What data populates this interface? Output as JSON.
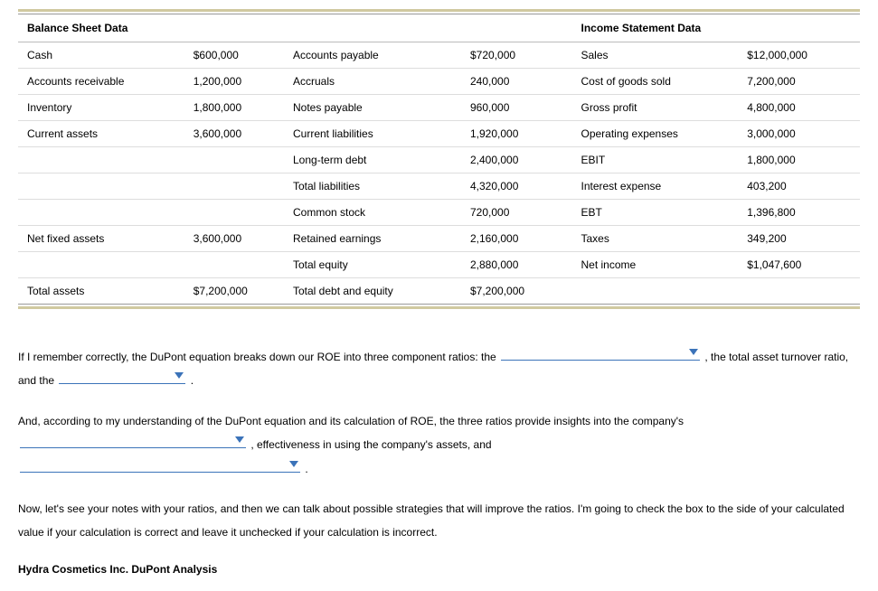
{
  "table": {
    "header_left": "Balance Sheet Data",
    "header_right": "Income Statement Data",
    "rows": [
      {
        "c1": "Cash",
        "c2": "$600,000",
        "c3": "Accounts payable",
        "c4": "$720,000",
        "c5": "Sales",
        "c6": "$12,000,000",
        "indent1": false,
        "indent3": false,
        "indent5": false
      },
      {
        "c1": "Accounts receivable",
        "c2": "1,200,000",
        "c3": "Accruals",
        "c4": "240,000",
        "c5": "Cost of goods sold",
        "c6": "7,200,000",
        "indent1": false,
        "indent3": false,
        "indent5": false
      },
      {
        "c1": "Inventory",
        "c2": "1,800,000",
        "c3": "Notes payable",
        "c4": "960,000",
        "c5": "Gross profit",
        "c6": "4,800,000",
        "indent1": false,
        "indent3": false,
        "indent5": false
      },
      {
        "c1": "Current assets",
        "c2": "3,600,000",
        "c3": "Current liabilities",
        "c4": "1,920,000",
        "c5": "Operating expenses",
        "c6": "3,000,000",
        "indent1": true,
        "indent3": true,
        "indent5": false
      },
      {
        "c1": "",
        "c2": "",
        "c3": "Long-term debt",
        "c4": "2,400,000",
        "c5": "EBIT",
        "c6": "1,800,000",
        "indent1": false,
        "indent3": false,
        "indent5": false
      },
      {
        "c1": "",
        "c2": "",
        "c3": "Total liabilities",
        "c4": "4,320,000",
        "c5": "Interest expense",
        "c6": "403,200",
        "indent1": false,
        "indent3": true,
        "indent5": false
      },
      {
        "c1": "",
        "c2": "",
        "c3": "Common stock",
        "c4": "720,000",
        "c5": "EBT",
        "c6": "1,396,800",
        "indent1": false,
        "indent3": false,
        "indent5": false
      },
      {
        "c1": "Net fixed assets",
        "c2": "3,600,000",
        "c3": "Retained earnings",
        "c4": "2,160,000",
        "c5": "Taxes",
        "c6": "349,200",
        "indent1": false,
        "indent3": false,
        "indent5": false
      },
      {
        "c1": "",
        "c2": "",
        "c3": "Total equity",
        "c4": "2,880,000",
        "c5": "Net income",
        "c6": "$1,047,600",
        "indent1": false,
        "indent3": true,
        "indent5": false
      },
      {
        "c1": "Total assets",
        "c2": "$7,200,000",
        "c3": "Total debt and equity",
        "c4": "$7,200,000",
        "c5": "",
        "c6": "",
        "indent1": false,
        "indent3": false,
        "indent5": false
      }
    ],
    "col_widths": {
      "c1": "150px",
      "c2": "90px",
      "c3": "160px",
      "c4": "100px",
      "c5": "150px",
      "c6": "110px"
    }
  },
  "paragraphs": {
    "p1_part1": "If I remember correctly, the DuPont equation breaks down our ROE into three component ratios: the ",
    "p1_part2": " , the total asset turnover ratio, and the ",
    "p1_part3": " .",
    "p2_part1": "And, according to my understanding of the DuPont equation and its calculation of ROE, the three ratios provide insights into the company's ",
    "p2_part2": " , effectiveness in using the company's assets, and ",
    "p2_part3": " .",
    "p3": "Now, let's see your notes with your ratios, and then we can talk about possible strategies that will improve the ratios. I'm going to check the box to the side of your calculated value if your calculation is correct and leave it unchecked if your calculation is incorrect."
  },
  "dropdowns": {
    "d1_width": 220,
    "d2_width": 140,
    "d3_width": 250,
    "d4_width": 310
  },
  "heading": "Hydra Cosmetics Inc. DuPont Analysis",
  "colors": {
    "accent_border": "#d0c9a0",
    "dropdown_color": "#3b73b9",
    "row_border": "#ddd",
    "header_border": "#bbb"
  }
}
